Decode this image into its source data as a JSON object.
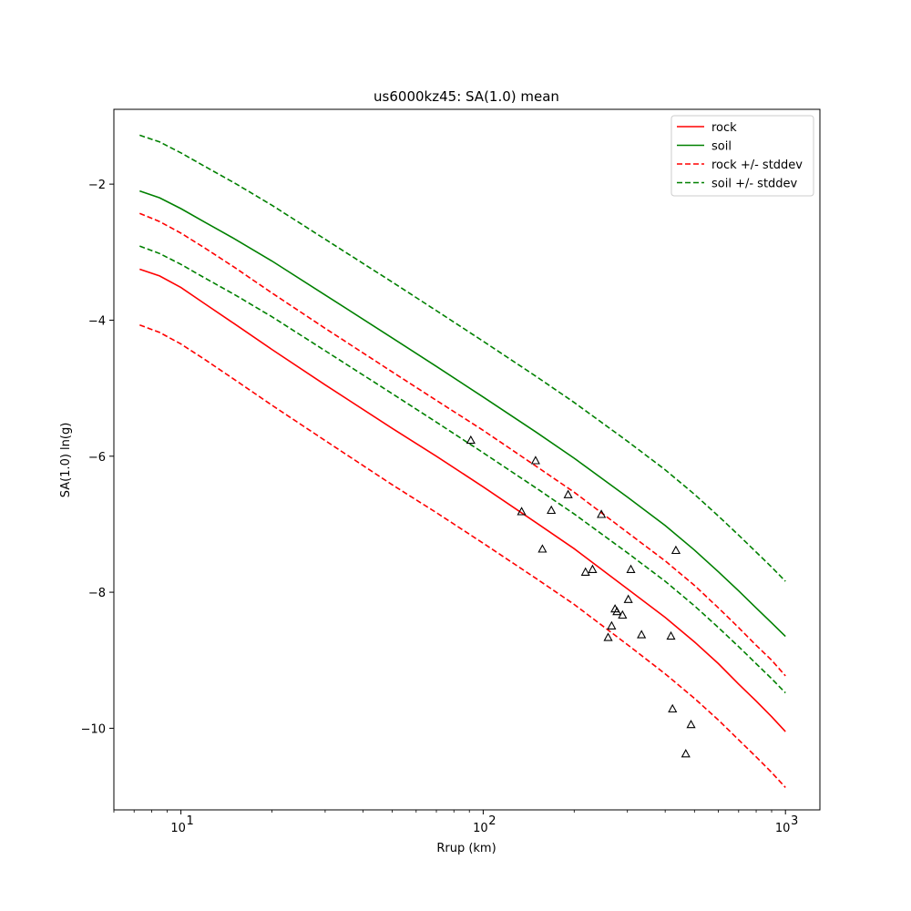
{
  "chart_data": {
    "type": "line",
    "title": "us6000kz45: SA(1.0) mean",
    "xlabel": "Rrup (km)",
    "ylabel": "SA(1.0) ln(g)",
    "xscale": "log",
    "xlim": [
      6.0,
      1300
    ],
    "ylim": [
      -11.2,
      -0.9
    ],
    "x_ticks": [
      {
        "value": 10,
        "label": "10",
        "exp": "1"
      },
      {
        "value": 100,
        "label": "10",
        "exp": "2"
      },
      {
        "value": 1000,
        "label": "10",
        "exp": "3"
      }
    ],
    "y_ticks": [
      {
        "value": -2,
        "label": "−2"
      },
      {
        "value": -4,
        "label": "−4"
      },
      {
        "value": -6,
        "label": "−6"
      },
      {
        "value": -8,
        "label": "−8"
      },
      {
        "value": -10,
        "label": "−10"
      }
    ],
    "legend": {
      "position": "top-right",
      "entries": [
        {
          "label": "rock",
          "color": "#ff0000",
          "dash": false
        },
        {
          "label": "soil",
          "color": "#008000",
          "dash": false
        },
        {
          "label": "rock +/- stddev",
          "color": "#ff0000",
          "dash": true
        },
        {
          "label": "soil +/- stddev",
          "color": "#008000",
          "dash": true
        }
      ]
    },
    "series": [
      {
        "name": "rock",
        "color": "#ff0000",
        "dash": false,
        "x": [
          7.3,
          8.5,
          10,
          12,
          15,
          20,
          30,
          50,
          70,
          100,
          150,
          200,
          300,
          400,
          500,
          600,
          700,
          800,
          900,
          1000
        ],
        "y": [
          -3.25,
          -3.35,
          -3.52,
          -3.76,
          -4.05,
          -4.43,
          -4.95,
          -5.59,
          -6.0,
          -6.45,
          -6.98,
          -7.36,
          -7.95,
          -8.37,
          -8.73,
          -9.05,
          -9.35,
          -9.6,
          -9.83,
          -10.05
        ]
      },
      {
        "name": "soil",
        "color": "#008000",
        "dash": false,
        "x": [
          7.3,
          8.5,
          10,
          12,
          15,
          20,
          30,
          50,
          70,
          100,
          150,
          200,
          300,
          400,
          500,
          600,
          700,
          800,
          900,
          1000
        ],
        "y": [
          -2.1,
          -2.2,
          -2.36,
          -2.56,
          -2.8,
          -3.13,
          -3.63,
          -4.26,
          -4.68,
          -5.13,
          -5.65,
          -6.03,
          -6.6,
          -7.02,
          -7.38,
          -7.7,
          -7.98,
          -8.23,
          -8.45,
          -8.65
        ]
      },
      {
        "name": "rock + stddev",
        "color": "#ff0000",
        "dash": true,
        "x": [
          7.3,
          8.5,
          10,
          12,
          15,
          20,
          30,
          50,
          70,
          100,
          150,
          200,
          300,
          400,
          500,
          600,
          700,
          800,
          900,
          1000
        ],
        "y": [
          -2.43,
          -2.55,
          -2.72,
          -2.94,
          -3.22,
          -3.6,
          -4.12,
          -4.76,
          -5.18,
          -5.62,
          -6.15,
          -6.53,
          -7.12,
          -7.54,
          -7.9,
          -8.23,
          -8.52,
          -8.78,
          -9.0,
          -9.23
        ]
      },
      {
        "name": "rock - stddev",
        "color": "#ff0000",
        "dash": true,
        "x": [
          7.3,
          8.5,
          10,
          12,
          15,
          20,
          30,
          50,
          70,
          100,
          150,
          200,
          300,
          400,
          500,
          600,
          700,
          800,
          900,
          1000
        ],
        "y": [
          -4.07,
          -4.18,
          -4.35,
          -4.58,
          -4.87,
          -5.25,
          -5.77,
          -6.42,
          -6.83,
          -7.28,
          -7.8,
          -8.18,
          -8.77,
          -9.2,
          -9.56,
          -9.88,
          -10.17,
          -10.42,
          -10.65,
          -10.87
        ]
      },
      {
        "name": "soil + stddev",
        "color": "#008000",
        "dash": true,
        "x": [
          7.3,
          8.5,
          10,
          12,
          15,
          20,
          30,
          50,
          70,
          100,
          150,
          200,
          300,
          400,
          500,
          600,
          700,
          800,
          900,
          1000
        ],
        "y": [
          -1.28,
          -1.38,
          -1.54,
          -1.74,
          -1.98,
          -2.31,
          -2.81,
          -3.44,
          -3.86,
          -4.31,
          -4.83,
          -5.21,
          -5.78,
          -6.2,
          -6.56,
          -6.88,
          -7.16,
          -7.41,
          -7.63,
          -7.84
        ]
      },
      {
        "name": "soil - stddev",
        "color": "#008000",
        "dash": true,
        "x": [
          7.3,
          8.5,
          10,
          12,
          15,
          20,
          30,
          50,
          70,
          100,
          150,
          200,
          300,
          400,
          500,
          600,
          700,
          800,
          900,
          1000
        ],
        "y": [
          -2.91,
          -3.02,
          -3.18,
          -3.38,
          -3.62,
          -3.95,
          -4.45,
          -5.08,
          -5.5,
          -5.95,
          -6.47,
          -6.85,
          -7.42,
          -7.84,
          -8.2,
          -8.52,
          -8.8,
          -9.05,
          -9.27,
          -9.48
        ]
      }
    ],
    "scatter": {
      "marker": "triangle",
      "color": "#000000",
      "points": [
        {
          "x": 91,
          "y": -5.77
        },
        {
          "x": 134,
          "y": -6.82
        },
        {
          "x": 149,
          "y": -6.07
        },
        {
          "x": 157,
          "y": -7.37
        },
        {
          "x": 168,
          "y": -6.8
        },
        {
          "x": 191,
          "y": -6.57
        },
        {
          "x": 218,
          "y": -7.71
        },
        {
          "x": 230,
          "y": -7.67
        },
        {
          "x": 246,
          "y": -6.86
        },
        {
          "x": 259,
          "y": -8.67
        },
        {
          "x": 266,
          "y": -8.5
        },
        {
          "x": 273,
          "y": -8.25
        },
        {
          "x": 277,
          "y": -8.29
        },
        {
          "x": 289,
          "y": -8.34
        },
        {
          "x": 302,
          "y": -8.11
        },
        {
          "x": 308,
          "y": -7.67
        },
        {
          "x": 334,
          "y": -8.63
        },
        {
          "x": 418,
          "y": -8.65
        },
        {
          "x": 423,
          "y": -9.72
        },
        {
          "x": 434,
          "y": -7.39
        },
        {
          "x": 468,
          "y": -10.38
        },
        {
          "x": 487,
          "y": -9.95
        }
      ]
    }
  }
}
